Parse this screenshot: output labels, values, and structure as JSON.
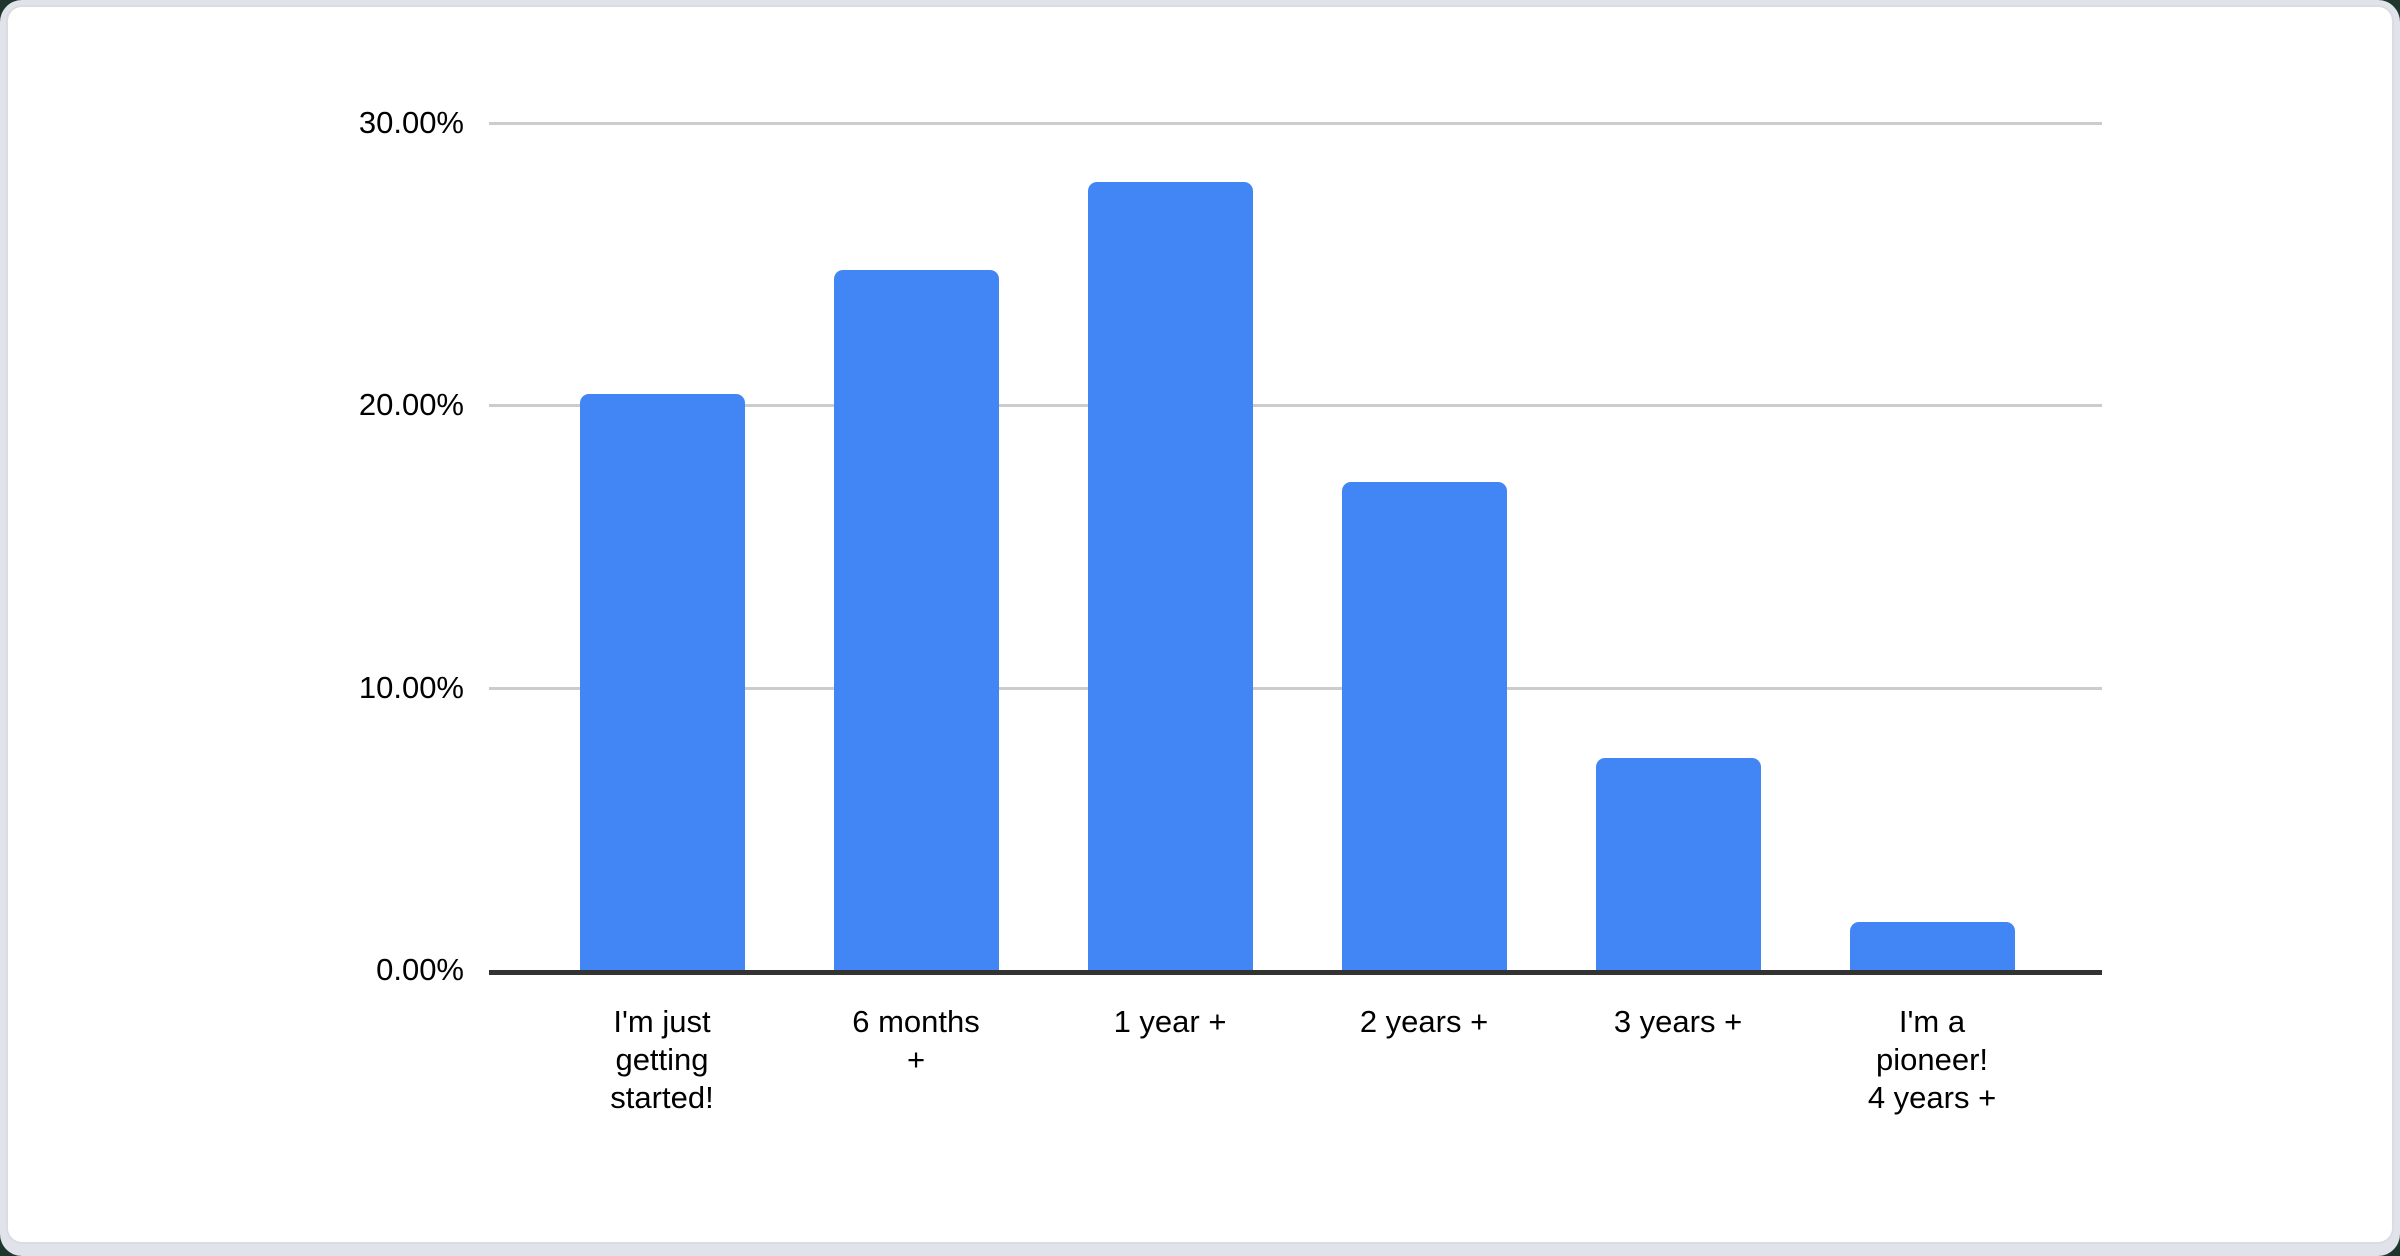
{
  "chart_data": {
    "type": "bar",
    "title": "",
    "categories": [
      "I'm just getting started!",
      "6 months +",
      "1 year +",
      "2 years +",
      "3 years +",
      "I'm a pioneer! 4 years +"
    ],
    "category_lines": [
      [
        "I'm just",
        "getting",
        "started!"
      ],
      [
        "6 months",
        "+"
      ],
      [
        "1 year +"
      ],
      [
        "2 years +"
      ],
      [
        "3 years +"
      ],
      [
        "I'm a",
        "pioneer!",
        "4 years +"
      ]
    ],
    "values": [
      20.4,
      24.8,
      27.9,
      17.3,
      7.5,
      1.7
    ],
    "unit": "%",
    "xlabel": "",
    "ylabel": "",
    "ylim": [
      0,
      30
    ],
    "yticks": [
      "0.00%",
      "10.00%",
      "20.00%",
      "30.00%"
    ],
    "ytick_values": [
      0,
      10,
      20,
      30
    ],
    "grid": true,
    "legend_position": "none",
    "colors": {
      "bar": "#4285f4",
      "gridline": "#cccccc",
      "axis": "#333333",
      "label": "#000000",
      "card_background": "#ffffff",
      "card_border": "#d9dce1",
      "page_background": "#e0e3ea"
    }
  }
}
